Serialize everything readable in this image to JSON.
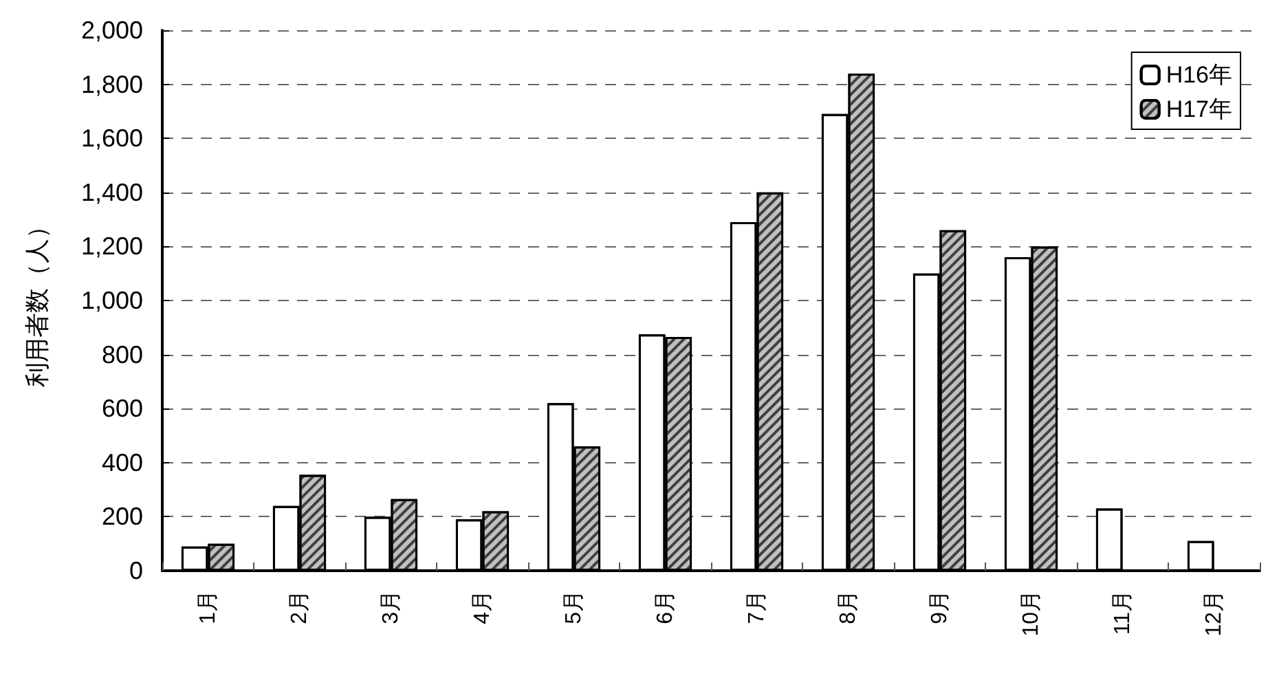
{
  "chart_data": {
    "type": "bar",
    "ylabel": "利用者数（人）",
    "categories": [
      "1月",
      "2月",
      "3月",
      "4月",
      "5月",
      "6月",
      "7月",
      "8月",
      "9月",
      "10月",
      "11月",
      "12月"
    ],
    "series": [
      {
        "name": "H16年",
        "color": "#ffffff",
        "values": [
          90,
          240,
          200,
          190,
          620,
          875,
          1290,
          1690,
          1100,
          1160,
          230,
          110
        ]
      },
      {
        "name": "H17年",
        "color": "#c0c0c0",
        "values": [
          100,
          355,
          265,
          220,
          460,
          865,
          1400,
          1840,
          1260,
          1200,
          null,
          null
        ]
      }
    ],
    "ylim": [
      0,
      2000
    ],
    "yticks": [
      {
        "value": 0,
        "label": "0"
      },
      {
        "value": 200,
        "label": "200"
      },
      {
        "value": 400,
        "label": "400"
      },
      {
        "value": 600,
        "label": "600"
      },
      {
        "value": 800,
        "label": "800"
      },
      {
        "value": 1000,
        "label": "1,000"
      },
      {
        "value": 1200,
        "label": "1,200"
      },
      {
        "value": 1400,
        "label": "1,400"
      },
      {
        "value": 1600,
        "label": "1,600"
      },
      {
        "value": 1800,
        "label": "1,800"
      },
      {
        "value": 2000,
        "label": "2,000"
      }
    ],
    "grid": "y",
    "legend": "top right"
  }
}
